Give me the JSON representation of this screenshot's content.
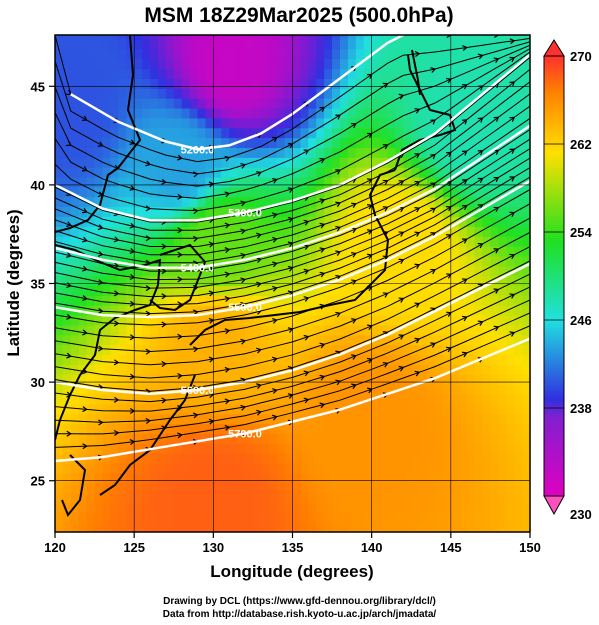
{
  "title": "MSM 18Z29Mar2025 (500.0hPa)",
  "axes": {
    "xlabel": "Longitude (degrees)",
    "ylabel": "Latitude  (degrees)",
    "xlim": [
      120,
      150
    ],
    "ylim": [
      22.4,
      47.6
    ],
    "xticks": [
      120,
      125,
      130,
      135,
      140,
      145,
      150
    ],
    "xtick_labels": [
      "120",
      "125",
      "130",
      "135",
      "140",
      "145",
      "150"
    ],
    "yticks": [
      25,
      30,
      35,
      40,
      45
    ],
    "ytick_labels": [
      "25",
      "30",
      "35",
      "40",
      "45"
    ],
    "grid": true
  },
  "colorbar": {
    "ticks": [
      230,
      238,
      246,
      254,
      262,
      270
    ],
    "tick_labels": [
      "230",
      "238",
      "246",
      "254",
      "262",
      "270"
    ],
    "range": [
      230,
      270
    ],
    "colors": [
      "#e000c0",
      "#3030e0",
      "#20e0e0",
      "#20e020",
      "#ffe000",
      "#ff8000",
      "#ff3030"
    ]
  },
  "chart_data": {
    "type": "heatmap",
    "field": "temperature shading with geopotential height contours and wind streamlines",
    "contours": [
      {
        "label": "5200.0",
        "value": 5200,
        "points": [
          [
            121,
            44.6
          ],
          [
            124,
            43.2
          ],
          [
            127,
            42.2
          ],
          [
            129,
            41.8
          ],
          [
            131,
            42.0
          ],
          [
            133,
            42.6
          ],
          [
            135,
            43.6
          ],
          [
            137,
            44.8
          ],
          [
            139,
            46.0
          ],
          [
            141,
            47.2
          ],
          [
            142,
            47.6
          ]
        ]
      },
      {
        "label": "5300.0",
        "value": 5300,
        "points": [
          [
            120,
            40.0
          ],
          [
            123,
            38.8
          ],
          [
            126,
            38.2
          ],
          [
            129,
            38.2
          ],
          [
            132,
            38.6
          ],
          [
            135,
            39.2
          ],
          [
            138,
            40.0
          ],
          [
            141,
            41.2
          ],
          [
            144,
            42.6
          ],
          [
            147,
            44.6
          ],
          [
            150,
            46.6
          ]
        ]
      },
      {
        "label": "5400.0",
        "value": 5400,
        "points": [
          [
            120,
            36.8
          ],
          [
            123,
            36.2
          ],
          [
            126,
            35.8
          ],
          [
            129,
            35.8
          ],
          [
            132,
            36.2
          ],
          [
            135,
            36.8
          ],
          [
            138,
            37.6
          ],
          [
            141,
            38.6
          ],
          [
            144,
            39.8
          ],
          [
            147,
            41.4
          ],
          [
            150,
            43.0
          ]
        ]
      },
      {
        "label": "5500.0",
        "value": 5500,
        "points": [
          [
            120,
            33.8
          ],
          [
            123,
            33.4
          ],
          [
            126,
            33.3
          ],
          [
            129,
            33.4
          ],
          [
            132,
            33.8
          ],
          [
            135,
            34.4
          ],
          [
            138,
            35.2
          ],
          [
            141,
            36.2
          ],
          [
            144,
            37.4
          ],
          [
            147,
            38.8
          ],
          [
            150,
            40.2
          ]
        ]
      },
      {
        "label": "5600.0",
        "value": 5600,
        "points": [
          [
            120,
            30.0
          ],
          [
            123,
            29.6
          ],
          [
            126,
            29.4
          ],
          [
            129,
            29.6
          ],
          [
            132,
            30.0
          ],
          [
            135,
            30.6
          ],
          [
            138,
            31.4
          ],
          [
            141,
            32.4
          ],
          [
            144,
            33.6
          ],
          [
            147,
            34.8
          ],
          [
            150,
            36.0
          ]
        ]
      },
      {
        "label": "5700.0",
        "value": 5700,
        "points": [
          [
            120,
            26.0
          ],
          [
            123,
            26.2
          ],
          [
            126,
            26.6
          ],
          [
            129,
            27.0
          ],
          [
            132,
            27.4
          ],
          [
            135,
            28.0
          ],
          [
            138,
            28.6
          ],
          [
            141,
            29.4
          ],
          [
            144,
            30.2
          ],
          [
            147,
            31.2
          ],
          [
            150,
            32.2
          ]
        ]
      }
    ],
    "temperature_samples": [
      {
        "lon": 131,
        "lat": 46,
        "value": 231
      },
      {
        "lon": 121,
        "lat": 44,
        "value": 238
      },
      {
        "lon": 128,
        "lat": 41,
        "value": 241
      },
      {
        "lon": 146,
        "lat": 43,
        "value": 245
      },
      {
        "lon": 130,
        "lat": 37,
        "value": 252
      },
      {
        "lon": 142,
        "lat": 37,
        "value": 257
      },
      {
        "lon": 130,
        "lat": 32,
        "value": 260
      },
      {
        "lon": 140,
        "lat": 28,
        "value": 262
      },
      {
        "lon": 130,
        "lat": 24,
        "value": 266
      }
    ]
  },
  "credits": {
    "line1": "Drawing by DCL (https://www.gfd-dennou.org/library/dcl/)",
    "line2": "Data from http://database.rish.kyoto-u.ac.jp/arch/jmadata/"
  }
}
